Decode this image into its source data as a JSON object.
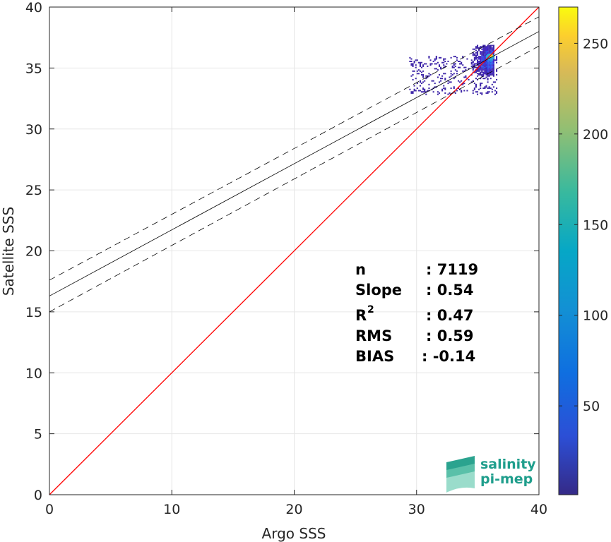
{
  "chart_data": {
    "type": "scatter",
    "xlabel": "Argo SSS",
    "ylabel": "Satellite SSS",
    "xlim": [
      0,
      40
    ],
    "ylim": [
      0,
      40
    ],
    "x_ticks": [
      0,
      10,
      20,
      30,
      40
    ],
    "y_ticks": [
      0,
      5,
      10,
      15,
      20,
      25,
      30,
      35,
      40
    ],
    "grid": true,
    "lines": [
      {
        "name": "identity",
        "style": "solid",
        "color": "#ff0000",
        "x": [
          0,
          40
        ],
        "y": [
          0,
          40
        ]
      },
      {
        "name": "regression",
        "style": "solid",
        "color": "#000000",
        "x": [
          0,
          40
        ],
        "y": [
          16.3,
          38.0
        ]
      },
      {
        "name": "regression-upper",
        "style": "dashed",
        "color": "#000000",
        "x": [
          0,
          40
        ],
        "y": [
          17.6,
          39.2
        ]
      },
      {
        "name": "regression-lower",
        "style": "dashed",
        "color": "#000000",
        "x": [
          0,
          40
        ],
        "y": [
          15.0,
          36.8
        ]
      }
    ],
    "density_cluster": {
      "x_range": [
        28,
        37
      ],
      "y_range": [
        32,
        37
      ],
      "center": [
        36,
        35.9
      ]
    },
    "colorbar": {
      "min": 1,
      "max": 270,
      "ticks": [
        50,
        100,
        150,
        200,
        250
      ],
      "colormap": "parula"
    },
    "stats": [
      {
        "label": "n",
        "value": ": 7119"
      },
      {
        "label": "Slope",
        "value": ": 0.54"
      },
      {
        "label": "R",
        "superscript": "2",
        "value": ": 0.47"
      },
      {
        "label": "RMS",
        "value": ": 0.59"
      },
      {
        "label": "BIAS",
        "value": ": -0.14"
      }
    ]
  },
  "logo": {
    "line1": "salinity",
    "line2": "pi-mep"
  },
  "colors": {
    "identity_line": "#ff0000",
    "grid": "#e6e6e6",
    "axis": "#262626"
  }
}
